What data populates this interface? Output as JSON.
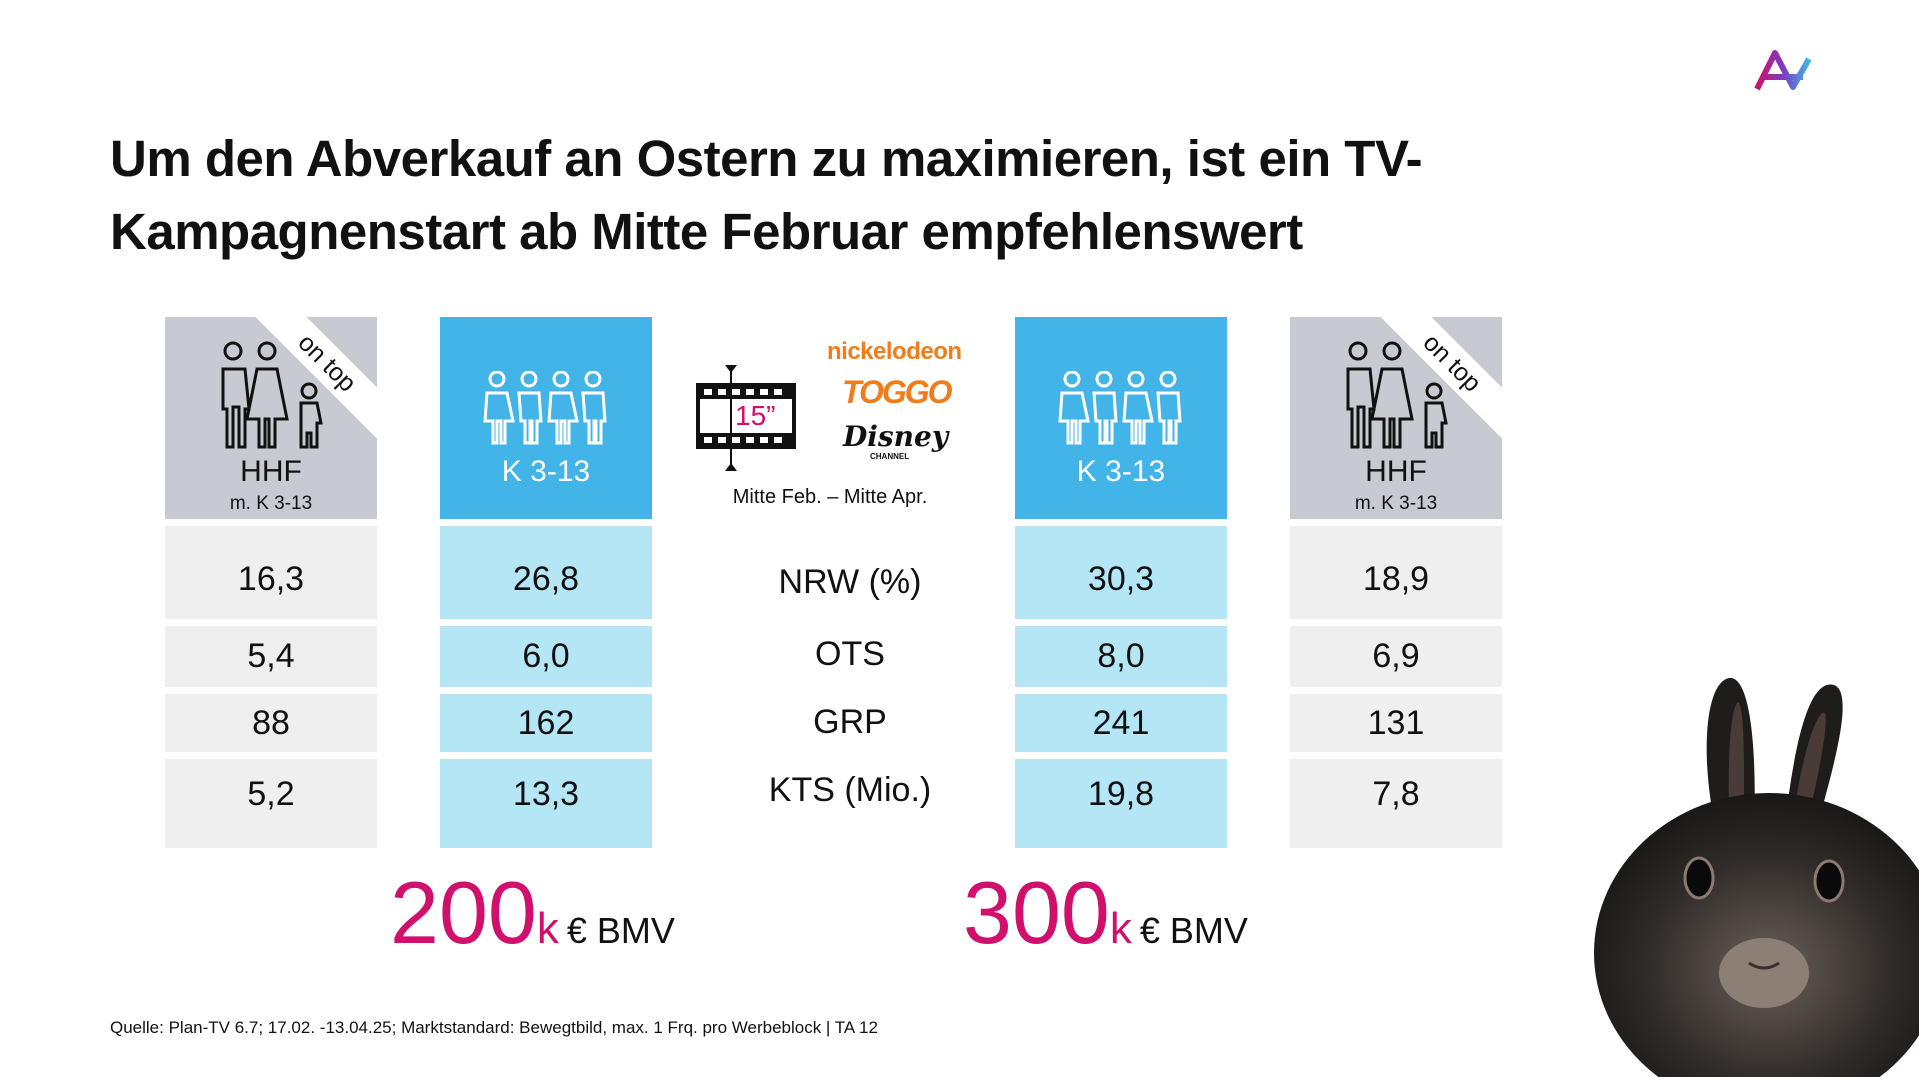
{
  "title_line1": "Um den Abverkauf an Ostern zu maximieren, ist ein TV-",
  "title_line2": "Kampagnenstart ab Mitte Februar empfehlenswert",
  "columns": [
    {
      "type": "grey",
      "label": "HHF",
      "sublabel": "m. K 3-13",
      "ribbon": "on top",
      "values": [
        "16,3",
        "5,4",
        "88",
        "5,2"
      ]
    },
    {
      "type": "blue",
      "label": "K 3-13",
      "values": [
        "26,8",
        "6,0",
        "162",
        "13,3"
      ]
    },
    {
      "type": "blue",
      "label": "K 3-13",
      "values": [
        "30,3",
        "8,0",
        "241",
        "19,8"
      ]
    },
    {
      "type": "grey",
      "label": "HHF",
      "sublabel": "m. K 3-13",
      "ribbon": "on top",
      "values": [
        "18,9",
        "6,9",
        "131",
        "7,8"
      ]
    }
  ],
  "metrics": [
    "NRW (%)",
    "OTS",
    "GRP",
    "KTS (Mio.)"
  ],
  "spot_length": "15”",
  "channels": [
    "nickelodeon",
    "TOGGO",
    "Disney",
    "CHANNEL"
  ],
  "period": "Mitte Feb. – Mitte Apr.",
  "budgets": [
    {
      "amount": "200",
      "unit": "k",
      "suffix": "€ BMV"
    },
    {
      "amount": "300",
      "unit": "k",
      "suffix": "€ BMV"
    }
  ],
  "footer": "Quelle: Plan-TV 6.7; 17.02. -13.04.25; Marktstandard: Bewegtbild, max. 1 Frq. pro Werbeblock | TA 12",
  "colors": {
    "accent": "#d0106c",
    "blue": "#42b4e8",
    "light_blue": "#b5e6f6",
    "grey": "#c8cad1",
    "orange": "#f07d1a"
  }
}
